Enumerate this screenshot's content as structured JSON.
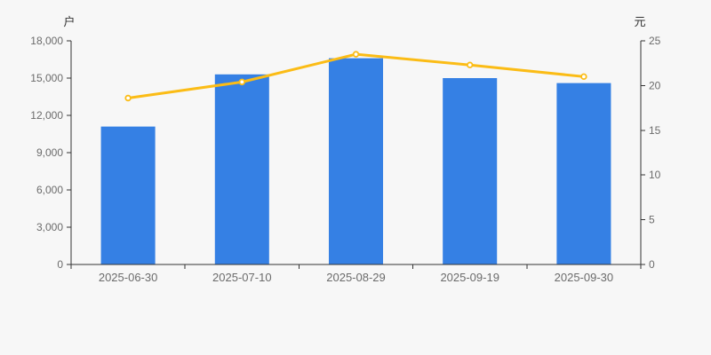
{
  "page": {
    "background_color": "#f7f7f7"
  },
  "chart_data": {
    "type": "bar+line",
    "categories": [
      "2025-06-30",
      "2025-07-10",
      "2025-08-29",
      "2025-09-19",
      "2025-09-30"
    ],
    "series": [
      {
        "id": "holders-bars",
        "type": "bar",
        "axis": "left",
        "values": [
          11100,
          15300,
          16600,
          15000,
          14600
        ],
        "color": "#3580e4"
      },
      {
        "id": "price-line",
        "type": "line",
        "axis": "right",
        "values": [
          18.6,
          20.4,
          23.5,
          22.3,
          21.0
        ],
        "color": "#fbbc16",
        "marker": "hollow-circle",
        "marker_fill": "#ffffff"
      }
    ],
    "left_axis": {
      "unit_label": "户",
      "min": 0,
      "max": 18000,
      "ticks": [
        0,
        3000,
        6000,
        9000,
        12000,
        15000,
        18000
      ],
      "tick_labels": [
        "0",
        "3,000",
        "6,000",
        "9,000",
        "12,000",
        "15,000",
        "18,000"
      ]
    },
    "right_axis": {
      "unit_label": "元",
      "min": 0,
      "max": 25,
      "ticks": [
        0,
        5,
        10,
        15,
        20,
        25
      ],
      "tick_labels": [
        "0",
        "5",
        "10",
        "15",
        "20",
        "25"
      ]
    },
    "grid": false,
    "legend": false,
    "axis_line_color": "#333333",
    "tick_label_color": "#6b6b6b",
    "unit_label_color": "#333333"
  }
}
